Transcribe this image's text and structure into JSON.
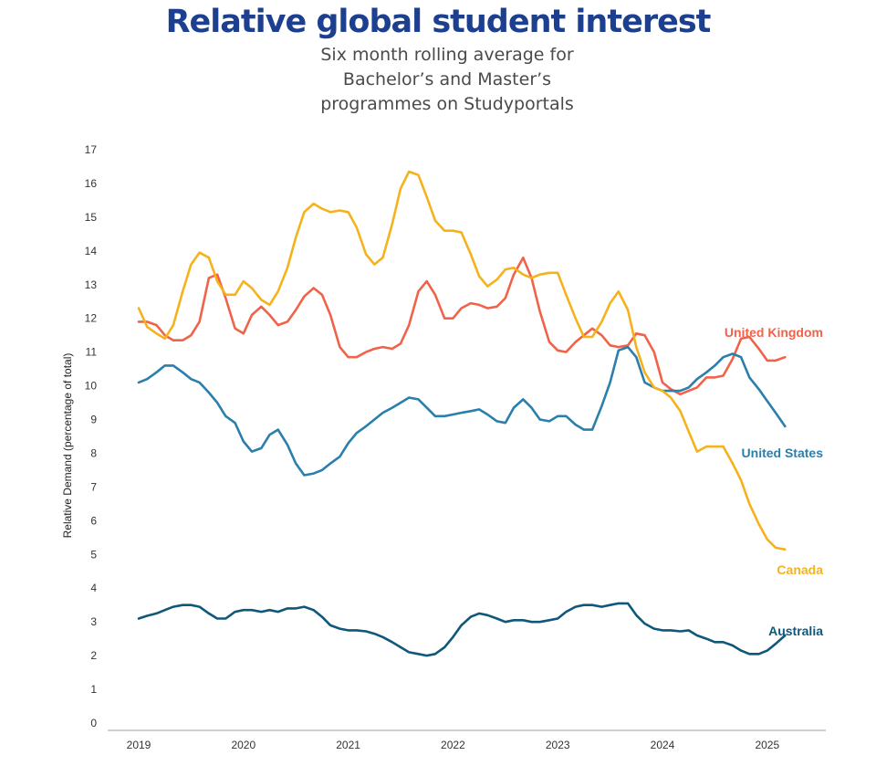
{
  "chart_data": {
    "type": "line",
    "title": "Relative global student interest",
    "subtitle": "Six month rolling average for Bachelor’s and Master’s programmes on Studyportals",
    "xlabel": "",
    "ylabel": "Relative Demand (percentage of total)",
    "xlim": [
      2019.0,
      2025.6
    ],
    "ylim": [
      0,
      17
    ],
    "y_ticks": [
      0,
      1,
      2,
      3,
      4,
      5,
      6,
      7,
      8,
      9,
      10,
      11,
      12,
      13,
      14,
      15,
      16,
      17
    ],
    "x_ticks": [
      2019,
      2020,
      2021,
      2022,
      2023,
      2024,
      2025
    ],
    "grid": false,
    "legend": "inline labels at line ends",
    "series": [
      {
        "name": "United Kingdom",
        "color": "#f0634a",
        "x": [
          2019.0,
          2019.08,
          2019.17,
          2019.25,
          2019.33,
          2019.42,
          2019.5,
          2019.58,
          2019.67,
          2019.75,
          2019.83,
          2019.92,
          2020.0,
          2020.08,
          2020.17,
          2020.25,
          2020.33,
          2020.42,
          2020.5,
          2020.58,
          2020.67,
          2020.75,
          2020.83,
          2020.92,
          2021.0,
          2021.08,
          2021.17,
          2021.25,
          2021.33,
          2021.42,
          2021.5,
          2021.58,
          2021.67,
          2021.75,
          2021.83,
          2021.92,
          2022.0,
          2022.08,
          2022.17,
          2022.25,
          2022.33,
          2022.42,
          2022.5,
          2022.58,
          2022.67,
          2022.75,
          2022.83,
          2022.92,
          2023.0,
          2023.08,
          2023.17,
          2023.25,
          2023.33,
          2023.42,
          2023.5,
          2023.58,
          2023.67,
          2023.75,
          2023.83,
          2023.92,
          2024.0,
          2024.08,
          2024.17,
          2024.25,
          2024.33,
          2024.42,
          2024.5,
          2024.58,
          2024.67,
          2024.75,
          2024.83,
          2024.92,
          2025.0,
          2025.08,
          2025.17
        ],
        "values": [
          11.9,
          11.9,
          11.8,
          11.5,
          11.35,
          11.35,
          11.5,
          11.9,
          13.2,
          13.3,
          12.6,
          11.7,
          11.55,
          12.1,
          12.35,
          12.1,
          11.8,
          11.9,
          12.25,
          12.65,
          12.9,
          12.7,
          12.1,
          11.15,
          10.85,
          10.85,
          11.0,
          11.1,
          11.15,
          11.1,
          11.25,
          11.8,
          12.8,
          13.1,
          12.7,
          12.0,
          12.0,
          12.3,
          12.45,
          12.4,
          12.3,
          12.35,
          12.6,
          13.3,
          13.8,
          13.2,
          12.2,
          11.3,
          11.05,
          11.0,
          11.3,
          11.5,
          11.7,
          11.5,
          11.2,
          11.15,
          11.2,
          11.55,
          11.5,
          11.0,
          10.1,
          9.9,
          9.75,
          9.85,
          9.95,
          10.25,
          10.25,
          10.3,
          10.8,
          11.4,
          11.45,
          11.1,
          10.75,
          10.75,
          10.85
        ]
      },
      {
        "name": "United States",
        "color": "#2a7fac",
        "x": [
          2019.0,
          2019.08,
          2019.17,
          2019.25,
          2019.33,
          2019.42,
          2019.5,
          2019.58,
          2019.67,
          2019.75,
          2019.83,
          2019.92,
          2020.0,
          2020.08,
          2020.17,
          2020.25,
          2020.33,
          2020.42,
          2020.5,
          2020.58,
          2020.67,
          2020.75,
          2020.83,
          2020.92,
          2021.0,
          2021.08,
          2021.17,
          2021.25,
          2021.33,
          2021.42,
          2021.5,
          2021.58,
          2021.67,
          2021.75,
          2021.83,
          2021.92,
          2022.0,
          2022.08,
          2022.17,
          2022.25,
          2022.33,
          2022.42,
          2022.5,
          2022.58,
          2022.67,
          2022.75,
          2022.83,
          2022.92,
          2023.0,
          2023.08,
          2023.17,
          2023.25,
          2023.33,
          2023.42,
          2023.5,
          2023.58,
          2023.67,
          2023.75,
          2023.83,
          2023.92,
          2024.0,
          2024.08,
          2024.17,
          2024.25,
          2024.33,
          2024.42,
          2024.5,
          2024.58,
          2024.67,
          2024.75,
          2024.83,
          2024.92,
          2025.0,
          2025.08,
          2025.17
        ],
        "values": [
          10.1,
          10.2,
          10.4,
          10.6,
          10.6,
          10.4,
          10.2,
          10.1,
          9.8,
          9.5,
          9.1,
          8.9,
          8.35,
          8.05,
          8.15,
          8.55,
          8.7,
          8.25,
          7.7,
          7.35,
          7.4,
          7.5,
          7.7,
          7.9,
          8.3,
          8.6,
          8.8,
          9.0,
          9.2,
          9.35,
          9.5,
          9.65,
          9.6,
          9.35,
          9.1,
          9.1,
          9.15,
          9.2,
          9.25,
          9.3,
          9.15,
          8.95,
          8.9,
          9.35,
          9.6,
          9.35,
          9.0,
          8.95,
          9.1,
          9.1,
          8.85,
          8.7,
          8.7,
          9.4,
          10.1,
          11.05,
          11.15,
          10.85,
          10.1,
          9.95,
          9.85,
          9.85,
          9.85,
          9.95,
          10.2,
          10.4,
          10.6,
          10.85,
          10.95,
          10.85,
          10.25,
          9.9,
          9.55,
          9.2,
          8.8
        ]
      },
      {
        "name": "Canada",
        "color": "#f5b21b",
        "x": [
          2019.0,
          2019.08,
          2019.17,
          2019.25,
          2019.33,
          2019.42,
          2019.5,
          2019.58,
          2019.67,
          2019.75,
          2019.83,
          2019.92,
          2020.0,
          2020.08,
          2020.17,
          2020.25,
          2020.33,
          2020.42,
          2020.5,
          2020.58,
          2020.67,
          2020.75,
          2020.83,
          2020.92,
          2021.0,
          2021.08,
          2021.17,
          2021.25,
          2021.33,
          2021.42,
          2021.5,
          2021.58,
          2021.67,
          2021.75,
          2021.83,
          2021.92,
          2022.0,
          2022.08,
          2022.17,
          2022.25,
          2022.33,
          2022.42,
          2022.5,
          2022.58,
          2022.67,
          2022.75,
          2022.83,
          2022.92,
          2023.0,
          2023.08,
          2023.17,
          2023.25,
          2023.33,
          2023.42,
          2023.5,
          2023.58,
          2023.67,
          2023.75,
          2023.83,
          2023.92,
          2024.0,
          2024.08,
          2024.17,
          2024.25,
          2024.33,
          2024.42,
          2024.5,
          2024.58,
          2024.67,
          2024.75,
          2024.83,
          2024.92,
          2025.0,
          2025.08,
          2025.17
        ],
        "values": [
          12.3,
          11.75,
          11.55,
          11.4,
          11.8,
          12.8,
          13.6,
          13.95,
          13.8,
          13.1,
          12.7,
          12.7,
          13.1,
          12.9,
          12.55,
          12.4,
          12.8,
          13.5,
          14.4,
          15.15,
          15.4,
          15.25,
          15.15,
          15.2,
          15.15,
          14.7,
          13.9,
          13.6,
          13.8,
          14.8,
          15.85,
          16.35,
          16.25,
          15.6,
          14.9,
          14.6,
          14.6,
          14.55,
          13.9,
          13.25,
          12.95,
          13.15,
          13.45,
          13.5,
          13.3,
          13.2,
          13.3,
          13.35,
          13.35,
          12.7,
          12.0,
          11.45,
          11.45,
          11.9,
          12.45,
          12.8,
          12.25,
          11.15,
          10.4,
          9.95,
          9.85,
          9.65,
          9.25,
          8.65,
          8.05,
          8.2,
          8.2,
          8.2,
          7.7,
          7.2,
          6.5,
          5.9,
          5.45,
          5.2,
          5.15
        ]
      },
      {
        "name": "Australia",
        "color": "#10587a",
        "x": [
          2019.0,
          2019.08,
          2019.17,
          2019.25,
          2019.33,
          2019.42,
          2019.5,
          2019.58,
          2019.67,
          2019.75,
          2019.83,
          2019.92,
          2020.0,
          2020.08,
          2020.17,
          2020.25,
          2020.33,
          2020.42,
          2020.5,
          2020.58,
          2020.67,
          2020.75,
          2020.83,
          2020.92,
          2021.0,
          2021.08,
          2021.17,
          2021.25,
          2021.33,
          2021.42,
          2021.5,
          2021.58,
          2021.67,
          2021.75,
          2021.83,
          2021.92,
          2022.0,
          2022.08,
          2022.17,
          2022.25,
          2022.33,
          2022.42,
          2022.5,
          2022.58,
          2022.67,
          2022.75,
          2022.83,
          2022.92,
          2023.0,
          2023.08,
          2023.17,
          2023.25,
          2023.33,
          2023.42,
          2023.5,
          2023.58,
          2023.67,
          2023.75,
          2023.83,
          2023.92,
          2024.0,
          2024.08,
          2024.17,
          2024.25,
          2024.33,
          2024.42,
          2024.5,
          2024.58,
          2024.67,
          2024.75,
          2024.83,
          2024.92,
          2025.0,
          2025.08,
          2025.17
        ],
        "values": [
          3.1,
          3.18,
          3.25,
          3.35,
          3.45,
          3.5,
          3.5,
          3.45,
          3.25,
          3.1,
          3.1,
          3.3,
          3.35,
          3.35,
          3.3,
          3.35,
          3.3,
          3.4,
          3.4,
          3.45,
          3.35,
          3.15,
          2.9,
          2.8,
          2.75,
          2.75,
          2.72,
          2.65,
          2.55,
          2.4,
          2.25,
          2.1,
          2.05,
          2.0,
          2.05,
          2.25,
          2.55,
          2.9,
          3.15,
          3.25,
          3.2,
          3.1,
          3.0,
          3.05,
          3.05,
          3.0,
          3.0,
          3.05,
          3.1,
          3.3,
          3.45,
          3.5,
          3.5,
          3.45,
          3.5,
          3.55,
          3.55,
          3.2,
          2.95,
          2.8,
          2.75,
          2.75,
          2.72,
          2.75,
          2.6,
          2.5,
          2.4,
          2.4,
          2.3,
          2.15,
          2.05,
          2.05,
          2.15,
          2.35,
          2.6
        ]
      }
    ]
  }
}
